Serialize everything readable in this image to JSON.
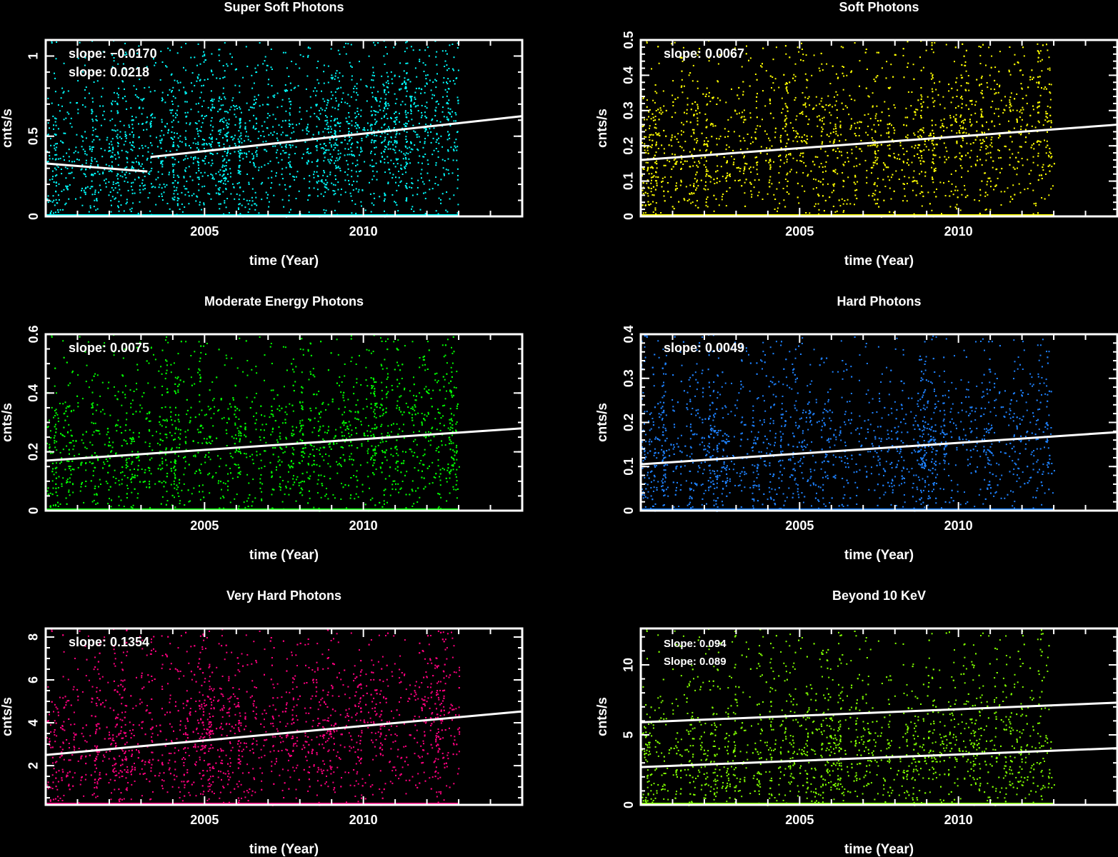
{
  "chart_data": [
    {
      "type": "scatter",
      "title": "Super Soft Photons",
      "xlabel": "time (Year)",
      "ylabel": "cnts/s",
      "xlim": [
        2000,
        2015
      ],
      "ylim": [
        0,
        1.1
      ],
      "xticks": [
        2005,
        2010
      ],
      "yticks": [
        0,
        0.5,
        1
      ],
      "yminor": 0.1,
      "color": "#00ffff",
      "data_x_range": [
        2000,
        2013
      ],
      "annotations": [
        "slope: −0.0170",
        "slope: 0.0218"
      ],
      "fits": [
        {
          "x": [
            2000,
            2003.2
          ],
          "y": [
            0.33,
            0.28
          ]
        },
        {
          "x": [
            2003.3,
            2015
          ],
          "y": [
            0.37,
            0.625
          ]
        }
      ]
    },
    {
      "type": "scatter",
      "title": "Soft Photons",
      "xlabel": "time (Year)",
      "ylabel": "cnts/s",
      "xlim": [
        2000,
        2015
      ],
      "ylim": [
        0,
        0.5
      ],
      "xticks": [
        2005,
        2010
      ],
      "yticks": [
        0,
        0.1,
        0.2,
        0.3,
        0.4,
        0.5
      ],
      "yminor": 0.02,
      "color": "#ffff00",
      "data_x_range": [
        2000,
        2013
      ],
      "annotations": [
        "slope: 0.0067"
      ],
      "fits": [
        {
          "x": [
            2000,
            2015
          ],
          "y": [
            0.16,
            0.26
          ]
        }
      ]
    },
    {
      "type": "scatter",
      "title": "Moderate Energy Photons",
      "xlabel": "time (Year)",
      "ylabel": "cnts/s",
      "xlim": [
        2000,
        2015
      ],
      "ylim": [
        0,
        0.6
      ],
      "xticks": [
        2005,
        2010
      ],
      "yticks": [
        0,
        0.2,
        0.4,
        0.6
      ],
      "yminor": 0.05,
      "color": "#00ff00",
      "data_x_range": [
        2000,
        2013
      ],
      "annotations": [
        "slope: 0.0075"
      ],
      "fits": [
        {
          "x": [
            2000,
            2015
          ],
          "y": [
            0.17,
            0.28
          ]
        }
      ]
    },
    {
      "type": "scatter",
      "title": "Hard Photons",
      "xlabel": "time (Year)",
      "ylabel": "cnts/s",
      "xlim": [
        2000,
        2015
      ],
      "ylim": [
        0,
        0.4
      ],
      "xticks": [
        2005,
        2010
      ],
      "yticks": [
        0,
        0.1,
        0.2,
        0.3,
        0.4
      ],
      "yminor": 0.02,
      "color": "#1e82ff",
      "data_x_range": [
        2000,
        2013
      ],
      "annotations": [
        "slope: 0.0049"
      ],
      "fits": [
        {
          "x": [
            2000,
            2015
          ],
          "y": [
            0.105,
            0.178
          ]
        }
      ]
    },
    {
      "type": "scatter",
      "title": "Very Hard  Photons",
      "xlabel": "time (Year)",
      "ylabel": "cnts/s",
      "xlim": [
        2000,
        2015
      ],
      "ylim": [
        0.17,
        8.4
      ],
      "xticks": [
        2005,
        2010
      ],
      "yticks": [
        2,
        4,
        6,
        8
      ],
      "yminor": 0.5,
      "color": "#ff0080",
      "data_x_range": [
        2000,
        2013
      ],
      "annotations": [
        "slope: 0.1354"
      ],
      "fits": [
        {
          "x": [
            2000,
            2015
          ],
          "y": [
            2.5,
            4.53
          ]
        }
      ]
    },
    {
      "type": "scatter",
      "title": "Beyond 10 KeV",
      "xlabel": "time (Year)",
      "ylabel": "cnts/s",
      "xlim": [
        2000,
        2015
      ],
      "ylim": [
        0,
        12.6
      ],
      "xticks": [
        2005,
        2010
      ],
      "yticks": [
        0,
        5,
        10
      ],
      "yminor": 1,
      "color": "#80ff00",
      "data_x_range": [
        2000,
        2013
      ],
      "annotations": [
        "Slope: 0.094",
        "Slope: 0.089"
      ],
      "fits": [
        {
          "x": [
            2000,
            2015
          ],
          "y": [
            5.9,
            7.3
          ]
        },
        {
          "x": [
            2000,
            2015
          ],
          "y": [
            2.7,
            4.05
          ]
        }
      ]
    }
  ]
}
